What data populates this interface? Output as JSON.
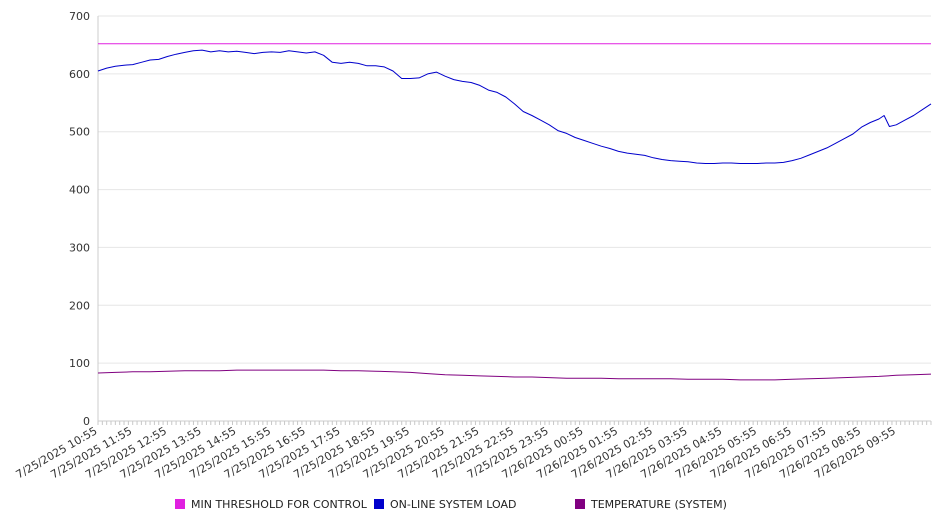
{
  "chart_data": {
    "type": "line",
    "y_axis": {
      "min": 0,
      "max": 700,
      "ticks": [
        0,
        100,
        200,
        300,
        400,
        500,
        600,
        700
      ]
    },
    "x_tick_labels": [
      "7/25/2025 10:55",
      "7/25/2025 11:55",
      "7/25/2025 12:55",
      "7/25/2025 13:55",
      "7/25/2025 14:55",
      "7/25/2025 15:55",
      "7/25/2025 16:55",
      "7/25/2025 17:55",
      "7/25/2025 18:55",
      "7/25/2025 19:55",
      "7/25/2025 20:55",
      "7/25/2025 21:55",
      "7/25/2025 22:55",
      "7/25/2025 23:55",
      "7/26/2025 00:55",
      "7/26/2025 01:55",
      "7/26/2025 02:55",
      "7/26/2025 03:55",
      "7/26/2025 04:55",
      "7/26/2025 05:55",
      "7/26/2025 06:55",
      "7/26/2025 07:55",
      "7/26/2025 08:55",
      "7/26/2025 09:55"
    ],
    "x_range_hours": [
      0,
      24
    ],
    "grid": true,
    "legend_position": "bottom",
    "series": [
      {
        "name": "MIN THRESHOLD FOR CONTROL",
        "color": "#e020e0",
        "points": [
          [
            0,
            652
          ],
          [
            24,
            652
          ]
        ]
      },
      {
        "name": "ON-LINE SYSTEM LOAD",
        "color": "#0000cc",
        "points": [
          [
            0,
            605
          ],
          [
            0.25,
            610
          ],
          [
            0.5,
            613
          ],
          [
            0.75,
            615
          ],
          [
            1,
            616
          ],
          [
            1.25,
            620
          ],
          [
            1.5,
            624
          ],
          [
            1.75,
            625
          ],
          [
            2,
            630
          ],
          [
            2.25,
            634
          ],
          [
            2.5,
            637
          ],
          [
            2.75,
            640
          ],
          [
            3,
            641
          ],
          [
            3.25,
            638
          ],
          [
            3.5,
            640
          ],
          [
            3.75,
            638
          ],
          [
            4,
            639
          ],
          [
            4.25,
            637
          ],
          [
            4.5,
            635
          ],
          [
            4.75,
            637
          ],
          [
            5,
            638
          ],
          [
            5.25,
            637
          ],
          [
            5.5,
            640
          ],
          [
            5.75,
            638
          ],
          [
            6,
            636
          ],
          [
            6.25,
            638
          ],
          [
            6.5,
            632
          ],
          [
            6.75,
            620
          ],
          [
            7,
            618
          ],
          [
            7.25,
            620
          ],
          [
            7.5,
            618
          ],
          [
            7.75,
            614
          ],
          [
            8,
            614
          ],
          [
            8.25,
            612
          ],
          [
            8.5,
            605
          ],
          [
            8.75,
            592
          ],
          [
            9,
            592
          ],
          [
            9.25,
            593
          ],
          [
            9.5,
            600
          ],
          [
            9.75,
            603
          ],
          [
            10,
            596
          ],
          [
            10.25,
            590
          ],
          [
            10.5,
            587
          ],
          [
            10.75,
            585
          ],
          [
            11,
            580
          ],
          [
            11.25,
            572
          ],
          [
            11.5,
            568
          ],
          [
            11.75,
            560
          ],
          [
            12,
            548
          ],
          [
            12.25,
            535
          ],
          [
            12.5,
            528
          ],
          [
            12.75,
            520
          ],
          [
            13,
            512
          ],
          [
            13.25,
            502
          ],
          [
            13.5,
            497
          ],
          [
            13.75,
            490
          ],
          [
            14,
            485
          ],
          [
            14.25,
            480
          ],
          [
            14.5,
            475
          ],
          [
            14.75,
            471
          ],
          [
            15,
            466
          ],
          [
            15.25,
            463
          ],
          [
            15.5,
            461
          ],
          [
            15.75,
            459
          ],
          [
            16,
            455
          ],
          [
            16.25,
            452
          ],
          [
            16.5,
            450
          ],
          [
            16.75,
            449
          ],
          [
            17,
            448
          ],
          [
            17.25,
            446
          ],
          [
            17.5,
            445
          ],
          [
            17.75,
            445
          ],
          [
            18,
            446
          ],
          [
            18.25,
            446
          ],
          [
            18.5,
            445
          ],
          [
            18.75,
            445
          ],
          [
            19,
            445
          ],
          [
            19.25,
            446
          ],
          [
            19.5,
            446
          ],
          [
            19.75,
            447
          ],
          [
            20,
            450
          ],
          [
            20.25,
            454
          ],
          [
            20.5,
            460
          ],
          [
            20.75,
            466
          ],
          [
            21,
            472
          ],
          [
            21.25,
            480
          ],
          [
            21.5,
            488
          ],
          [
            21.75,
            496
          ],
          [
            22,
            508
          ],
          [
            22.25,
            516
          ],
          [
            22.5,
            522
          ],
          [
            22.65,
            528
          ],
          [
            22.8,
            509
          ],
          [
            23,
            512
          ],
          [
            23.25,
            520
          ],
          [
            23.5,
            528
          ],
          [
            23.75,
            538
          ],
          [
            24,
            548
          ]
        ]
      },
      {
        "name": "TEMPERATURE (SYSTEM)",
        "color": "#800080",
        "points": [
          [
            0,
            83
          ],
          [
            0.5,
            84
          ],
          [
            1,
            85
          ],
          [
            1.5,
            85
          ],
          [
            2,
            86
          ],
          [
            2.5,
            87
          ],
          [
            3,
            87
          ],
          [
            3.5,
            87
          ],
          [
            4,
            88
          ],
          [
            4.5,
            88
          ],
          [
            5,
            88
          ],
          [
            5.5,
            88
          ],
          [
            6,
            88
          ],
          [
            6.5,
            88
          ],
          [
            7,
            87
          ],
          [
            7.5,
            87
          ],
          [
            8,
            86
          ],
          [
            8.5,
            85
          ],
          [
            9,
            84
          ],
          [
            9.5,
            82
          ],
          [
            10,
            80
          ],
          [
            10.5,
            79
          ],
          [
            11,
            78
          ],
          [
            11.5,
            77
          ],
          [
            12,
            76
          ],
          [
            12.5,
            76
          ],
          [
            13,
            75
          ],
          [
            13.5,
            74
          ],
          [
            14,
            74
          ],
          [
            14.5,
            74
          ],
          [
            15,
            73
          ],
          [
            15.5,
            73
          ],
          [
            16,
            73
          ],
          [
            16.5,
            73
          ],
          [
            17,
            72
          ],
          [
            17.5,
            72
          ],
          [
            18,
            72
          ],
          [
            18.5,
            71
          ],
          [
            19,
            71
          ],
          [
            19.5,
            71
          ],
          [
            20,
            72
          ],
          [
            20.5,
            73
          ],
          [
            21,
            74
          ],
          [
            21.5,
            75
          ],
          [
            22,
            76
          ],
          [
            22.5,
            77
          ],
          [
            23,
            79
          ],
          [
            23.5,
            80
          ],
          [
            24,
            81
          ]
        ]
      }
    ]
  }
}
